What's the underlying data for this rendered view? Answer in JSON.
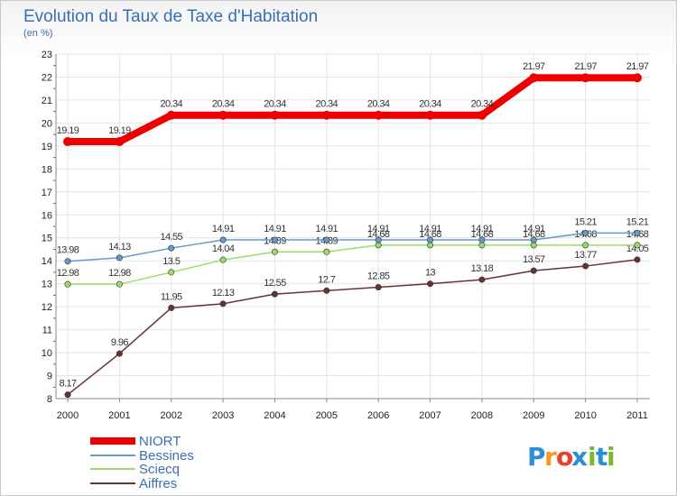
{
  "chart_data": {
    "type": "line",
    "title": "Evolution du Taux de Taxe d'Habitation",
    "subtitle": "(en %)",
    "x": [
      2000,
      2001,
      2002,
      2003,
      2004,
      2005,
      2006,
      2007,
      2008,
      2009,
      2010,
      2011
    ],
    "ylim": [
      8,
      23
    ],
    "yticks": [
      8,
      9,
      10,
      11,
      12,
      13,
      14,
      15,
      16,
      17,
      18,
      19,
      20,
      21,
      22,
      23
    ],
    "grid": true,
    "legend_position": "bottom-left",
    "series": [
      {
        "name": "NIORT",
        "color": "#ee0000",
        "values": [
          19.19,
          19.19,
          20.34,
          20.34,
          20.34,
          20.34,
          20.34,
          20.34,
          20.34,
          21.97,
          21.97,
          21.97
        ],
        "labels": [
          "19.19",
          "19.19",
          "20.34",
          "20.34",
          "20.34",
          "20.34",
          "20.34",
          "20.34",
          "20.34",
          "21.97",
          "21.97",
          "21.97"
        ]
      },
      {
        "name": "Bessines",
        "color": "#6699cc",
        "values": [
          13.98,
          14.13,
          14.55,
          14.91,
          14.91,
          14.91,
          14.91,
          14.91,
          14.91,
          14.91,
          15.21,
          15.21
        ],
        "labels": [
          "13.98",
          "14.13",
          "14.55",
          "14.91",
          "14.91",
          "14.91",
          "14.91",
          "14.91",
          "14.91",
          "14.91",
          "15.21",
          "15.21"
        ]
      },
      {
        "name": "Sciecq",
        "color": "#99dd66",
        "values": [
          12.98,
          12.98,
          13.5,
          14.04,
          14.39,
          14.39,
          14.68,
          14.68,
          14.68,
          14.68,
          14.68,
          14.68
        ],
        "labels": [
          "12.98",
          "12.98",
          "13.5",
          "14.04",
          "14.39",
          "14.39",
          "14.68",
          "14.68",
          "14.68",
          "14.68",
          "14.68",
          "14.68"
        ]
      },
      {
        "name": "Aiffres",
        "color": "#663333",
        "values": [
          8.17,
          9.96,
          11.95,
          12.13,
          12.55,
          12.7,
          12.85,
          13.0,
          13.18,
          13.57,
          13.77,
          14.05
        ],
        "labels": [
          "8.17",
          "9.96",
          "11.95",
          "12.13",
          "12.55",
          "12.7",
          "12.85",
          "13",
          "13.18",
          "13.57",
          "13.77",
          "14.05"
        ]
      }
    ]
  },
  "logo": {
    "text": "Proxiti",
    "letters": [
      "P",
      "r",
      "o",
      "x",
      "i",
      "t",
      "i"
    ],
    "colors": [
      "#2a8fd6",
      "#f39a1e",
      "#e8402a",
      "#2a8fd6",
      "#7ab92c",
      "#2a8fd6",
      "#7ab92c"
    ]
  }
}
